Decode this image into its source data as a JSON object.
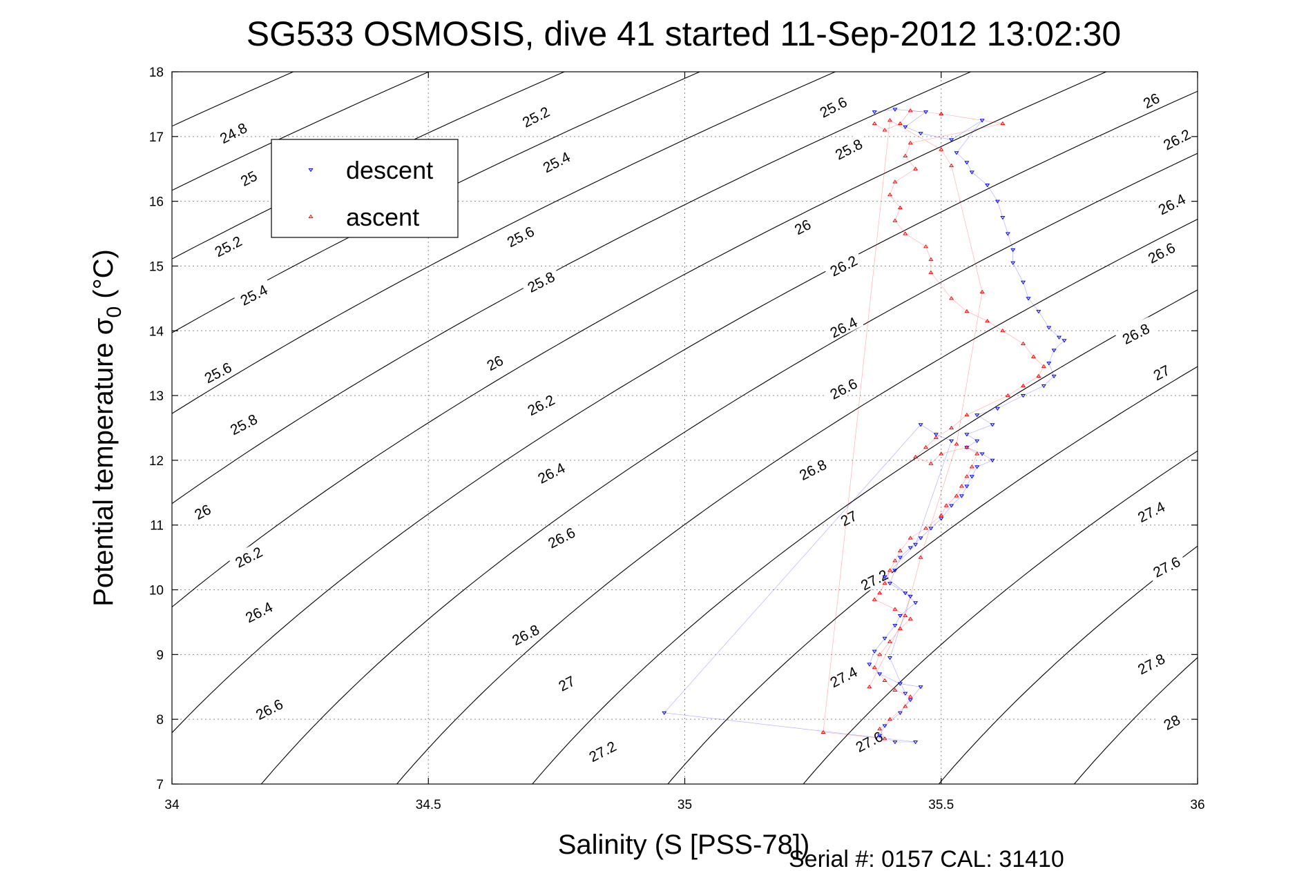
{
  "figure": {
    "title": "SG533 OSMOSIS, dive 41 started 11-Sep-2012 13:02:30",
    "footer": "Serial #: 0157  CAL: 31410"
  },
  "chart_data": {
    "type": "scatter",
    "title": "SG533 OSMOSIS, dive 41 started 11-Sep-2012 13:02:30",
    "xlabel": "Salinity (S [PSS-78])",
    "ylabel": "Potential temperature σ₀ (°C)",
    "xlim": [
      34,
      36
    ],
    "ylim": [
      7,
      18
    ],
    "xticks": [
      34,
      34.5,
      35,
      35.5,
      36
    ],
    "xtick_labels": [
      "34",
      "34.5",
      "35",
      "35.5",
      "36"
    ],
    "yticks": [
      7,
      8,
      9,
      10,
      11,
      12,
      13,
      14,
      15,
      16,
      17,
      18
    ],
    "ytick_labels": [
      "7",
      "8",
      "9",
      "10",
      "11",
      "12",
      "13",
      "14",
      "15",
      "16",
      "17",
      "18"
    ],
    "grid": true,
    "legend": {
      "position": "upper-left",
      "entries": [
        {
          "label": "descent",
          "color": "#0000ff",
          "marker": "triangle-down"
        },
        {
          "label": "ascent",
          "color": "#ff0000",
          "marker": "triangle-up"
        }
      ]
    },
    "contours": {
      "color": "#000000",
      "levels": [
        24.6,
        24.8,
        25.0,
        25.2,
        25.4,
        25.6,
        25.8,
        26.0,
        26.2,
        26.4,
        26.6,
        26.8,
        27.0,
        27.2,
        27.4,
        27.6,
        27.8,
        28.0
      ],
      "labels": [
        {
          "text": "24.8",
          "s": 34.12,
          "t": 17.05
        },
        {
          "text": "25",
          "s": 34.15,
          "t": 16.35
        },
        {
          "text": "25.2",
          "s": 34.11,
          "t": 15.3
        },
        {
          "text": "25.4",
          "s": 34.16,
          "t": 14.55
        },
        {
          "text": "25.6",
          "s": 34.09,
          "t": 13.35
        },
        {
          "text": "25.8",
          "s": 34.14,
          "t": 12.55
        },
        {
          "text": "26",
          "s": 34.06,
          "t": 11.2
        },
        {
          "text": "26.2",
          "s": 34.15,
          "t": 10.5
        },
        {
          "text": "26.4",
          "s": 34.17,
          "t": 9.65
        },
        {
          "text": "26.6",
          "s": 34.19,
          "t": 8.15
        },
        {
          "text": "25.2",
          "s": 34.71,
          "t": 17.3
        },
        {
          "text": "25.4",
          "s": 34.75,
          "t": 16.6
        },
        {
          "text": "25.6",
          "s": 34.68,
          "t": 15.45
        },
        {
          "text": "25.8",
          "s": 34.72,
          "t": 14.75
        },
        {
          "text": "26",
          "s": 34.63,
          "t": 13.5
        },
        {
          "text": "26.2",
          "s": 34.72,
          "t": 12.85
        },
        {
          "text": "26.4",
          "s": 34.74,
          "t": 11.8
        },
        {
          "text": "26.6",
          "s": 34.76,
          "t": 10.8
        },
        {
          "text": "26.8",
          "s": 34.69,
          "t": 9.3
        },
        {
          "text": "27",
          "s": 34.77,
          "t": 8.55
        },
        {
          "text": "27.2",
          "s": 34.84,
          "t": 7.5
        },
        {
          "text": "25.6",
          "s": 35.29,
          "t": 17.45
        },
        {
          "text": "25.8",
          "s": 35.32,
          "t": 16.8
        },
        {
          "text": "26",
          "s": 35.23,
          "t": 15.6
        },
        {
          "text": "26.2",
          "s": 35.31,
          "t": 15.0
        },
        {
          "text": "26.4",
          "s": 35.31,
          "t": 14.05
        },
        {
          "text": "26.6",
          "s": 35.31,
          "t": 13.1
        },
        {
          "text": "26.8",
          "s": 35.25,
          "t": 11.85
        },
        {
          "text": "27",
          "s": 35.32,
          "t": 11.1
        },
        {
          "text": "27.2",
          "s": 35.37,
          "t": 10.15
        },
        {
          "text": "27.4",
          "s": 35.31,
          "t": 8.65
        },
        {
          "text": "27.6",
          "s": 35.36,
          "t": 7.65
        },
        {
          "text": "26",
          "s": 35.91,
          "t": 17.55
        },
        {
          "text": "26.2",
          "s": 35.96,
          "t": 16.95
        },
        {
          "text": "26.4",
          "s": 35.95,
          "t": 15.95
        },
        {
          "text": "26.6",
          "s": 35.93,
          "t": 15.2
        },
        {
          "text": "26.8",
          "s": 35.88,
          "t": 13.95
        },
        {
          "text": "27",
          "s": 35.93,
          "t": 13.35
        },
        {
          "text": "27.4",
          "s": 35.91,
          "t": 11.2
        },
        {
          "text": "27.6",
          "s": 35.94,
          "t": 10.35
        },
        {
          "text": "27.8",
          "s": 35.91,
          "t": 8.85
        },
        {
          "text": "28",
          "s": 35.95,
          "t": 7.95
        }
      ]
    },
    "series": [
      {
        "name": "descent",
        "color": "#0000ff",
        "marker": "triangle-down",
        "points": [
          [
            35.37,
            17.38
          ],
          [
            35.41,
            17.42
          ],
          [
            35.47,
            17.38
          ],
          [
            35.43,
            17.15
          ],
          [
            35.46,
            17.05
          ],
          [
            35.52,
            16.95
          ],
          [
            35.58,
            17.25
          ],
          [
            35.53,
            16.75
          ],
          [
            35.55,
            16.6
          ],
          [
            35.56,
            16.45
          ],
          [
            35.59,
            16.25
          ],
          [
            35.61,
            16.0
          ],
          [
            35.62,
            15.75
          ],
          [
            35.63,
            15.5
          ],
          [
            35.64,
            15.25
          ],
          [
            35.64,
            15.05
          ],
          [
            35.66,
            14.75
          ],
          [
            35.67,
            14.5
          ],
          [
            35.69,
            14.3
          ],
          [
            35.71,
            14.05
          ],
          [
            35.73,
            13.9
          ],
          [
            35.74,
            13.85
          ],
          [
            35.72,
            13.7
          ],
          [
            35.71,
            13.5
          ],
          [
            35.72,
            13.3
          ],
          [
            35.7,
            13.15
          ],
          [
            35.66,
            13.0
          ],
          [
            35.61,
            12.8
          ],
          [
            35.57,
            12.7
          ],
          [
            35.6,
            12.55
          ],
          [
            35.55,
            12.4
          ],
          [
            35.57,
            12.3
          ],
          [
            35.55,
            12.2
          ],
          [
            35.58,
            12.1
          ],
          [
            35.6,
            12.0
          ],
          [
            35.57,
            11.9
          ],
          [
            35.56,
            11.75
          ],
          [
            35.55,
            11.6
          ],
          [
            35.54,
            11.45
          ],
          [
            35.52,
            11.3
          ],
          [
            35.5,
            11.1
          ],
          [
            35.48,
            10.95
          ],
          [
            35.46,
            10.8
          ],
          [
            35.44,
            10.65
          ],
          [
            35.42,
            10.5
          ],
          [
            35.41,
            10.3
          ],
          [
            35.4,
            10.1
          ],
          [
            35.43,
            9.95
          ],
          [
            35.45,
            9.8
          ],
          [
            35.42,
            9.6
          ],
          [
            35.41,
            9.45
          ],
          [
            35.39,
            9.25
          ],
          [
            35.37,
            9.05
          ],
          [
            35.36,
            8.85
          ],
          [
            35.38,
            8.7
          ],
          [
            35.42,
            8.55
          ],
          [
            35.46,
            8.5
          ],
          [
            35.44,
            8.3
          ],
          [
            35.42,
            8.1
          ],
          [
            35.39,
            7.9
          ],
          [
            35.38,
            7.75
          ],
          [
            35.41,
            7.65
          ],
          [
            35.45,
            7.65
          ],
          [
            34.96,
            8.1
          ],
          [
            35.46,
            12.55
          ],
          [
            35.49,
            12.4
          ],
          [
            35.52,
            12.3
          ],
          [
            35.45,
            10.7
          ],
          [
            35.39,
            10.2
          ],
          [
            35.44,
            9.9
          ],
          [
            35.4,
            8.95
          ],
          [
            35.43,
            8.4
          ]
        ]
      },
      {
        "name": "ascent",
        "color": "#ff0000",
        "marker": "triangle-up",
        "points": [
          [
            35.37,
            17.2
          ],
          [
            35.39,
            17.1
          ],
          [
            35.42,
            17.2
          ],
          [
            35.44,
            17.4
          ],
          [
            35.5,
            17.35
          ],
          [
            35.62,
            17.2
          ],
          [
            35.44,
            16.9
          ],
          [
            35.43,
            16.7
          ],
          [
            35.45,
            16.5
          ],
          [
            35.41,
            16.3
          ],
          [
            35.4,
            16.1
          ],
          [
            35.42,
            15.9
          ],
          [
            35.41,
            15.7
          ],
          [
            35.43,
            15.5
          ],
          [
            35.47,
            15.3
          ],
          [
            35.48,
            15.1
          ],
          [
            35.48,
            14.9
          ],
          [
            35.52,
            14.5
          ],
          [
            35.55,
            14.3
          ],
          [
            35.59,
            14.15
          ],
          [
            35.62,
            14.0
          ],
          [
            35.66,
            13.8
          ],
          [
            35.68,
            13.6
          ],
          [
            35.7,
            13.45
          ],
          [
            35.69,
            13.3
          ],
          [
            35.66,
            13.15
          ],
          [
            35.63,
            13.0
          ],
          [
            35.55,
            12.7
          ],
          [
            35.52,
            12.5
          ],
          [
            35.49,
            12.35
          ],
          [
            35.47,
            12.2
          ],
          [
            35.45,
            12.05
          ],
          [
            35.48,
            11.95
          ],
          [
            35.5,
            12.1
          ],
          [
            35.55,
            12.2
          ],
          [
            35.57,
            12.1
          ],
          [
            35.56,
            11.9
          ],
          [
            35.55,
            11.75
          ],
          [
            35.54,
            11.6
          ],
          [
            35.53,
            11.45
          ],
          [
            35.51,
            11.3
          ],
          [
            35.5,
            11.15
          ],
          [
            35.47,
            10.95
          ],
          [
            35.44,
            10.8
          ],
          [
            35.42,
            10.6
          ],
          [
            35.41,
            10.45
          ],
          [
            35.4,
            10.3
          ],
          [
            35.39,
            10.1
          ],
          [
            35.38,
            9.95
          ],
          [
            35.37,
            9.85
          ],
          [
            35.41,
            9.7
          ],
          [
            35.44,
            9.55
          ],
          [
            35.42,
            9.4
          ],
          [
            35.4,
            9.2
          ],
          [
            35.38,
            9.0
          ],
          [
            35.37,
            8.8
          ],
          [
            35.39,
            8.6
          ],
          [
            35.41,
            8.45
          ],
          [
            35.44,
            8.35
          ],
          [
            35.43,
            8.2
          ],
          [
            35.4,
            8.0
          ],
          [
            35.38,
            7.85
          ],
          [
            35.39,
            7.7
          ],
          [
            35.27,
            7.8
          ],
          [
            35.4,
            17.25
          ],
          [
            35.5,
            16.8
          ],
          [
            35.52,
            16.55
          ],
          [
            35.58,
            14.6
          ],
          [
            35.53,
            12.25
          ],
          [
            35.46,
            10.5
          ],
          [
            35.43,
            9.6
          ],
          [
            35.36,
            8.5
          ]
        ]
      }
    ]
  }
}
